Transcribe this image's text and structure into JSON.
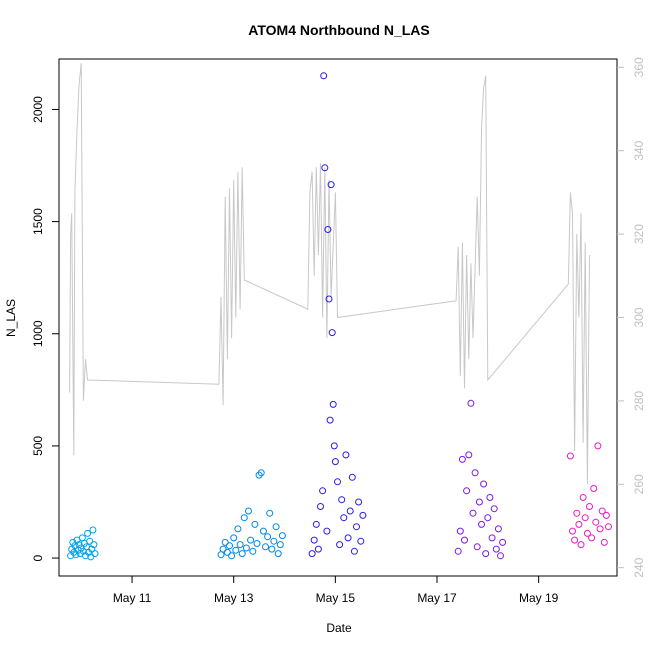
{
  "chart_data": {
    "type": "scatter",
    "title": "ATOM4 Northbound N_LAS",
    "xlabel": "Date",
    "ylabel": "N_LAS",
    "x_tick_labels": [
      "May 11",
      "May 13",
      "May 15",
      "May 17",
      "May 19"
    ],
    "x_ticks": [
      "2018-05-11",
      "2018-05-13",
      "2018-05-15",
      "2018-05-17",
      "2018-05-19"
    ],
    "xlim": [
      "2018-05-09T13:30",
      "2018-05-20T13:00"
    ],
    "ylim": [
      -80,
      2225
    ],
    "y_ticks": [
      0,
      500,
      1000,
      1500,
      2000
    ],
    "y2lim": [
      238,
      362
    ],
    "y2_ticks": [
      240,
      260,
      280,
      300,
      320,
      340,
      360
    ],
    "grid": false,
    "colors": {
      "axis": "#000000",
      "line": "#c8c8c8",
      "right_axis": "#c0c0c0"
    },
    "series": [
      {
        "color": "#00a0ee",
        "points": [
          {
            "x": "2018-05-09T19:00",
            "y": 10
          },
          {
            "x": "2018-05-09T19:30",
            "y": 40
          },
          {
            "x": "2018-05-09T20:00",
            "y": 70
          },
          {
            "x": "2018-05-09T20:30",
            "y": 25
          },
          {
            "x": "2018-05-09T21:00",
            "y": 55
          },
          {
            "x": "2018-05-09T21:30",
            "y": 15
          },
          {
            "x": "2018-05-09T22:00",
            "y": 80
          },
          {
            "x": "2018-05-09T22:30",
            "y": 35
          },
          {
            "x": "2018-05-09T23:00",
            "y": 60
          },
          {
            "x": "2018-05-09T23:30",
            "y": 20
          },
          {
            "x": "2018-05-10T00:00",
            "y": 45
          },
          {
            "x": "2018-05-10T00:30",
            "y": 90
          },
          {
            "x": "2018-05-10T01:00",
            "y": 30
          },
          {
            "x": "2018-05-10T01:30",
            "y": 65
          },
          {
            "x": "2018-05-10T02:00",
            "y": 10
          },
          {
            "x": "2018-05-10T02:30",
            "y": 50
          },
          {
            "x": "2018-05-10T03:00",
            "y": 110
          },
          {
            "x": "2018-05-10T03:30",
            "y": 25
          },
          {
            "x": "2018-05-10T04:00",
            "y": 75
          },
          {
            "x": "2018-05-10T04:30",
            "y": 5
          },
          {
            "x": "2018-05-10T05:00",
            "y": 40
          },
          {
            "x": "2018-05-10T05:30",
            "y": 125
          },
          {
            "x": "2018-05-10T06:00",
            "y": 60
          },
          {
            "x": "2018-05-10T06:30",
            "y": 20
          }
        ]
      },
      {
        "color": "#0088e8",
        "points": [
          {
            "x": "2018-05-12T18:00",
            "y": 15
          },
          {
            "x": "2018-05-12T19:00",
            "y": 40
          },
          {
            "x": "2018-05-12T20:00",
            "y": 70
          },
          {
            "x": "2018-05-12T21:00",
            "y": 25
          },
          {
            "x": "2018-05-12T22:00",
            "y": 55
          },
          {
            "x": "2018-05-12T23:00",
            "y": 10
          },
          {
            "x": "2018-05-13T00:00",
            "y": 90
          },
          {
            "x": "2018-05-13T01:00",
            "y": 35
          },
          {
            "x": "2018-05-13T02:00",
            "y": 130
          },
          {
            "x": "2018-05-13T03:00",
            "y": 60
          },
          {
            "x": "2018-05-13T04:00",
            "y": 20
          },
          {
            "x": "2018-05-13T05:00",
            "y": 180
          },
          {
            "x": "2018-05-13T06:00",
            "y": 45
          },
          {
            "x": "2018-05-13T07:00",
            "y": 210
          },
          {
            "x": "2018-05-13T08:00",
            "y": 80
          },
          {
            "x": "2018-05-13T09:00",
            "y": 30
          },
          {
            "x": "2018-05-13T10:00",
            "y": 150
          },
          {
            "x": "2018-05-13T11:00",
            "y": 65
          },
          {
            "x": "2018-05-13T12:00",
            "y": 370
          },
          {
            "x": "2018-05-13T13:00",
            "y": 380
          },
          {
            "x": "2018-05-13T14:00",
            "y": 120
          },
          {
            "x": "2018-05-13T15:00",
            "y": 50
          },
          {
            "x": "2018-05-13T16:00",
            "y": 95
          },
          {
            "x": "2018-05-13T17:00",
            "y": 200
          },
          {
            "x": "2018-05-13T18:00",
            "y": 40
          },
          {
            "x": "2018-05-13T19:00",
            "y": 75
          },
          {
            "x": "2018-05-13T20:00",
            "y": 140
          },
          {
            "x": "2018-05-13T21:00",
            "y": 20
          },
          {
            "x": "2018-05-13T22:00",
            "y": 60
          },
          {
            "x": "2018-05-13T23:00",
            "y": 100
          }
        ]
      },
      {
        "color": "#2a1fe8",
        "points": [
          {
            "x": "2018-05-14T13:00",
            "y": 20
          },
          {
            "x": "2018-05-14T14:00",
            "y": 80
          },
          {
            "x": "2018-05-14T15:00",
            "y": 150
          },
          {
            "x": "2018-05-14T16:00",
            "y": 40
          },
          {
            "x": "2018-05-14T17:00",
            "y": 230
          },
          {
            "x": "2018-05-14T18:00",
            "y": 300
          },
          {
            "x": "2018-05-14T18:30",
            "y": 2150
          },
          {
            "x": "2018-05-14T19:00",
            "y": 1740
          },
          {
            "x": "2018-05-14T20:00",
            "y": 120
          },
          {
            "x": "2018-05-14T20:30",
            "y": 1465
          },
          {
            "x": "2018-05-14T21:00",
            "y": 1155
          },
          {
            "x": "2018-05-14T21:30",
            "y": 615
          },
          {
            "x": "2018-05-14T22:00",
            "y": 1665
          },
          {
            "x": "2018-05-14T22:30",
            "y": 1005
          },
          {
            "x": "2018-05-14T23:00",
            "y": 685
          },
          {
            "x": "2018-05-14T23:30",
            "y": 500
          },
          {
            "x": "2018-05-15T00:00",
            "y": 430
          },
          {
            "x": "2018-05-15T01:00",
            "y": 340
          },
          {
            "x": "2018-05-15T02:00",
            "y": 60
          },
          {
            "x": "2018-05-15T03:00",
            "y": 260
          },
          {
            "x": "2018-05-15T04:00",
            "y": 180
          },
          {
            "x": "2018-05-15T05:00",
            "y": 460
          },
          {
            "x": "2018-05-15T06:00",
            "y": 90
          },
          {
            "x": "2018-05-15T07:00",
            "y": 210
          },
          {
            "x": "2018-05-15T08:00",
            "y": 360
          },
          {
            "x": "2018-05-15T09:00",
            "y": 30
          },
          {
            "x": "2018-05-15T10:00",
            "y": 140
          },
          {
            "x": "2018-05-15T11:00",
            "y": 250
          },
          {
            "x": "2018-05-15T12:00",
            "y": 75
          },
          {
            "x": "2018-05-15T13:00",
            "y": 190
          }
        ]
      },
      {
        "color": "#7a1be8",
        "points": [
          {
            "x": "2018-05-17T10:00",
            "y": 30
          },
          {
            "x": "2018-05-17T11:00",
            "y": 120
          },
          {
            "x": "2018-05-17T12:00",
            "y": 440
          },
          {
            "x": "2018-05-17T13:00",
            "y": 80
          },
          {
            "x": "2018-05-17T14:00",
            "y": 300
          },
          {
            "x": "2018-05-17T15:00",
            "y": 460
          },
          {
            "x": "2018-05-17T16:00",
            "y": 690
          },
          {
            "x": "2018-05-17T17:00",
            "y": 200
          },
          {
            "x": "2018-05-17T18:00",
            "y": 380
          },
          {
            "x": "2018-05-17T19:00",
            "y": 50
          },
          {
            "x": "2018-05-17T20:00",
            "y": 250
          },
          {
            "x": "2018-05-17T21:00",
            "y": 150
          },
          {
            "x": "2018-05-17T22:00",
            "y": 330
          },
          {
            "x": "2018-05-17T23:00",
            "y": 20
          },
          {
            "x": "2018-05-18T00:00",
            "y": 180
          },
          {
            "x": "2018-05-18T01:00",
            "y": 270
          },
          {
            "x": "2018-05-18T02:00",
            "y": 90
          },
          {
            "x": "2018-05-18T03:00",
            "y": 220
          },
          {
            "x": "2018-05-18T04:00",
            "y": 40
          },
          {
            "x": "2018-05-18T05:00",
            "y": 130
          },
          {
            "x": "2018-05-18T06:00",
            "y": 10
          },
          {
            "x": "2018-05-18T07:00",
            "y": 70
          }
        ]
      },
      {
        "color": "#e91cc8",
        "points": [
          {
            "x": "2018-05-19T15:00",
            "y": 455
          },
          {
            "x": "2018-05-19T16:00",
            "y": 120
          },
          {
            "x": "2018-05-19T17:00",
            "y": 80
          },
          {
            "x": "2018-05-19T18:00",
            "y": 200
          },
          {
            "x": "2018-05-19T19:00",
            "y": 150
          },
          {
            "x": "2018-05-19T20:00",
            "y": 60
          },
          {
            "x": "2018-05-19T21:00",
            "y": 270
          },
          {
            "x": "2018-05-19T22:00",
            "y": 180
          },
          {
            "x": "2018-05-19T23:00",
            "y": 110
          },
          {
            "x": "2018-05-20T00:00",
            "y": 230
          },
          {
            "x": "2018-05-20T01:00",
            "y": 90
          },
          {
            "x": "2018-05-20T02:00",
            "y": 310
          },
          {
            "x": "2018-05-20T03:00",
            "y": 160
          },
          {
            "x": "2018-05-20T04:00",
            "y": 500
          },
          {
            "x": "2018-05-20T05:00",
            "y": 130
          },
          {
            "x": "2018-05-20T06:00",
            "y": 210
          },
          {
            "x": "2018-05-20T07:00",
            "y": 70
          },
          {
            "x": "2018-05-20T08:00",
            "y": 190
          },
          {
            "x": "2018-05-20T09:00",
            "y": 140
          }
        ]
      }
    ],
    "line_series": {
      "axis": "right",
      "points": [
        {
          "x": "2018-05-09T18:30",
          "y": 282
        },
        {
          "x": "2018-05-09T19:00",
          "y": 320
        },
        {
          "x": "2018-05-09T19:30",
          "y": 325
        },
        {
          "x": "2018-05-09T20:30",
          "y": 267
        },
        {
          "x": "2018-05-09T21:00",
          "y": 330
        },
        {
          "x": "2018-05-09T22:00",
          "y": 345
        },
        {
          "x": "2018-05-09T23:00",
          "y": 356
        },
        {
          "x": "2018-05-10T00:00",
          "y": 361
        },
        {
          "x": "2018-05-10T01:00",
          "y": 280
        },
        {
          "x": "2018-05-10T02:00",
          "y": 290
        },
        {
          "x": "2018-05-10T03:00",
          "y": 285
        },
        {
          "x": "2018-05-12T17:00",
          "y": 284
        },
        {
          "x": "2018-05-12T18:00",
          "y": 305
        },
        {
          "x": "2018-05-12T19:00",
          "y": 279
        },
        {
          "x": "2018-05-12T20:00",
          "y": 329
        },
        {
          "x": "2018-05-12T21:00",
          "y": 290
        },
        {
          "x": "2018-05-12T22:00",
          "y": 331
        },
        {
          "x": "2018-05-12T23:00",
          "y": 295
        },
        {
          "x": "2018-05-13T00:00",
          "y": 333
        },
        {
          "x": "2018-05-13T01:00",
          "y": 300
        },
        {
          "x": "2018-05-13T02:00",
          "y": 335
        },
        {
          "x": "2018-05-13T03:00",
          "y": 302
        },
        {
          "x": "2018-05-13T04:00",
          "y": 336
        },
        {
          "x": "2018-05-13T05:00",
          "y": 309
        },
        {
          "x": "2018-05-14T11:00",
          "y": 302
        },
        {
          "x": "2018-05-14T12:00",
          "y": 330
        },
        {
          "x": "2018-05-14T13:00",
          "y": 335
        },
        {
          "x": "2018-05-14T14:00",
          "y": 310
        },
        {
          "x": "2018-05-14T15:00",
          "y": 336
        },
        {
          "x": "2018-05-14T16:00",
          "y": 315
        },
        {
          "x": "2018-05-14T17:00",
          "y": 337
        },
        {
          "x": "2018-05-14T18:00",
          "y": 300
        },
        {
          "x": "2018-05-14T19:00",
          "y": 336
        },
        {
          "x": "2018-05-14T20:00",
          "y": 295
        },
        {
          "x": "2018-05-14T21:00",
          "y": 333
        },
        {
          "x": "2018-05-14T22:00",
          "y": 305
        },
        {
          "x": "2018-05-15T00:00",
          "y": 330
        },
        {
          "x": "2018-05-15T01:00",
          "y": 300
        },
        {
          "x": "2018-05-17T09:00",
          "y": 304
        },
        {
          "x": "2018-05-17T10:00",
          "y": 317
        },
        {
          "x": "2018-05-17T11:00",
          "y": 286
        },
        {
          "x": "2018-05-17T12:00",
          "y": 318
        },
        {
          "x": "2018-05-17T13:00",
          "y": 283
        },
        {
          "x": "2018-05-17T14:00",
          "y": 315
        },
        {
          "x": "2018-05-17T15:00",
          "y": 290
        },
        {
          "x": "2018-05-17T16:00",
          "y": 313
        },
        {
          "x": "2018-05-17T17:00",
          "y": 295
        },
        {
          "x": "2018-05-17T19:00",
          "y": 329
        },
        {
          "x": "2018-05-17T20:00",
          "y": 310
        },
        {
          "x": "2018-05-17T21:00",
          "y": 345
        },
        {
          "x": "2018-05-17T22:00",
          "y": 355
        },
        {
          "x": "2018-05-17T23:00",
          "y": 358
        },
        {
          "x": "2018-05-18T00:00",
          "y": 285
        },
        {
          "x": "2018-05-19T14:00",
          "y": 308
        },
        {
          "x": "2018-05-19T15:00",
          "y": 330
        },
        {
          "x": "2018-05-19T16:00",
          "y": 325
        },
        {
          "x": "2018-05-19T17:00",
          "y": 268
        },
        {
          "x": "2018-05-19T18:00",
          "y": 320
        },
        {
          "x": "2018-05-19T19:00",
          "y": 300
        },
        {
          "x": "2018-05-19T20:00",
          "y": 325
        },
        {
          "x": "2018-05-19T21:00",
          "y": 270
        },
        {
          "x": "2018-05-19T22:00",
          "y": 318
        },
        {
          "x": "2018-05-19T23:00",
          "y": 260
        },
        {
          "x": "2018-05-20T00:00",
          "y": 315
        }
      ]
    }
  }
}
